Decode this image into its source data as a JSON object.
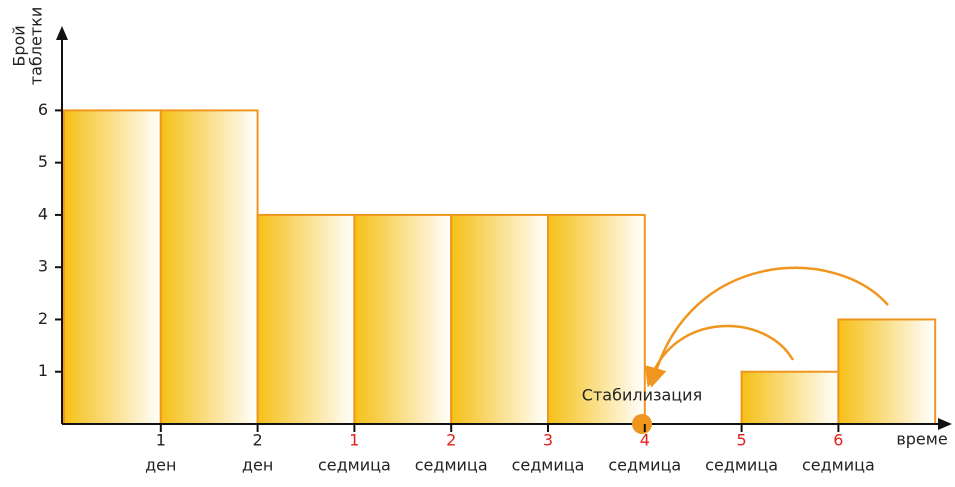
{
  "chart_data": {
    "type": "bar",
    "y_label": [
      "Брой",
      "таблетки"
    ],
    "x_label": "време",
    "annotation": "Стабилизация",
    "categories": [
      "1",
      "2",
      "1",
      "2",
      "3",
      "4",
      "5",
      "6",
      null
    ],
    "category_units": [
      "ден",
      "ден",
      "седмица",
      "седмица",
      "седмица",
      "седмица",
      "седмица",
      "седмица",
      null
    ],
    "category_colors": [
      "#222222",
      "#222222",
      "#e0201b",
      "#e0201b",
      "#e0201b",
      "#e0201b",
      "#e0201b",
      "#e0201b",
      null
    ],
    "values": [
      6,
      6,
      4,
      4,
      4,
      4,
      0,
      1,
      2
    ],
    "color": "#f5c016",
    "edge_color": "#f0961e",
    "ylim": [
      0,
      7.5
    ],
    "yticks": [
      1,
      2,
      3,
      4,
      5,
      6
    ]
  }
}
